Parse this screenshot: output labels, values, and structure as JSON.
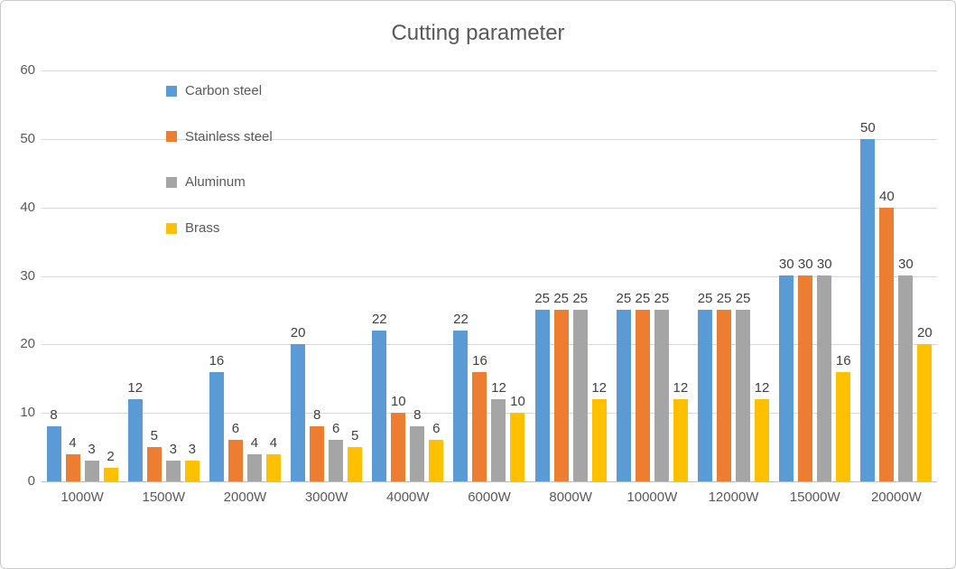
{
  "chart_data": {
    "type": "bar",
    "title": "Cutting parameter",
    "categories": [
      "1000W",
      "1500W",
      "2000W",
      "3000W",
      "4000W",
      "6000W",
      "8000W",
      "10000W",
      "12000W",
      "15000W",
      "20000W"
    ],
    "series": [
      {
        "name": "Carbon steel",
        "color": "#5B9BD5",
        "values": [
          8,
          12,
          16,
          20,
          22,
          22,
          25,
          25,
          25,
          30,
          50
        ]
      },
      {
        "name": "Stainless steel",
        "color": "#ED7D31",
        "values": [
          4,
          5,
          6,
          8,
          10,
          16,
          25,
          25,
          25,
          30,
          40
        ]
      },
      {
        "name": "Aluminum",
        "color": "#A5A5A5",
        "values": [
          3,
          3,
          4,
          6,
          8,
          12,
          25,
          25,
          25,
          30,
          30
        ]
      },
      {
        "name": "Brass",
        "color": "#FFC000",
        "values": [
          2,
          3,
          4,
          5,
          6,
          10,
          12,
          12,
          12,
          16,
          20
        ]
      }
    ],
    "xlabel": "",
    "ylabel": "",
    "ylim": [
      0,
      60
    ],
    "yticks": [
      0,
      10,
      20,
      30,
      40,
      50,
      60
    ],
    "grid": "horizontal",
    "legend_position": "inside-top-left",
    "data_labels": true
  },
  "style": {
    "background": "#FFFFFF",
    "border": "#C9C9C9",
    "gridline": "#D9D9D9",
    "axis_line": "#BFBFBF",
    "title_text": "#595959",
    "tick_text": "#595959",
    "data_label_text": "#404040"
  }
}
